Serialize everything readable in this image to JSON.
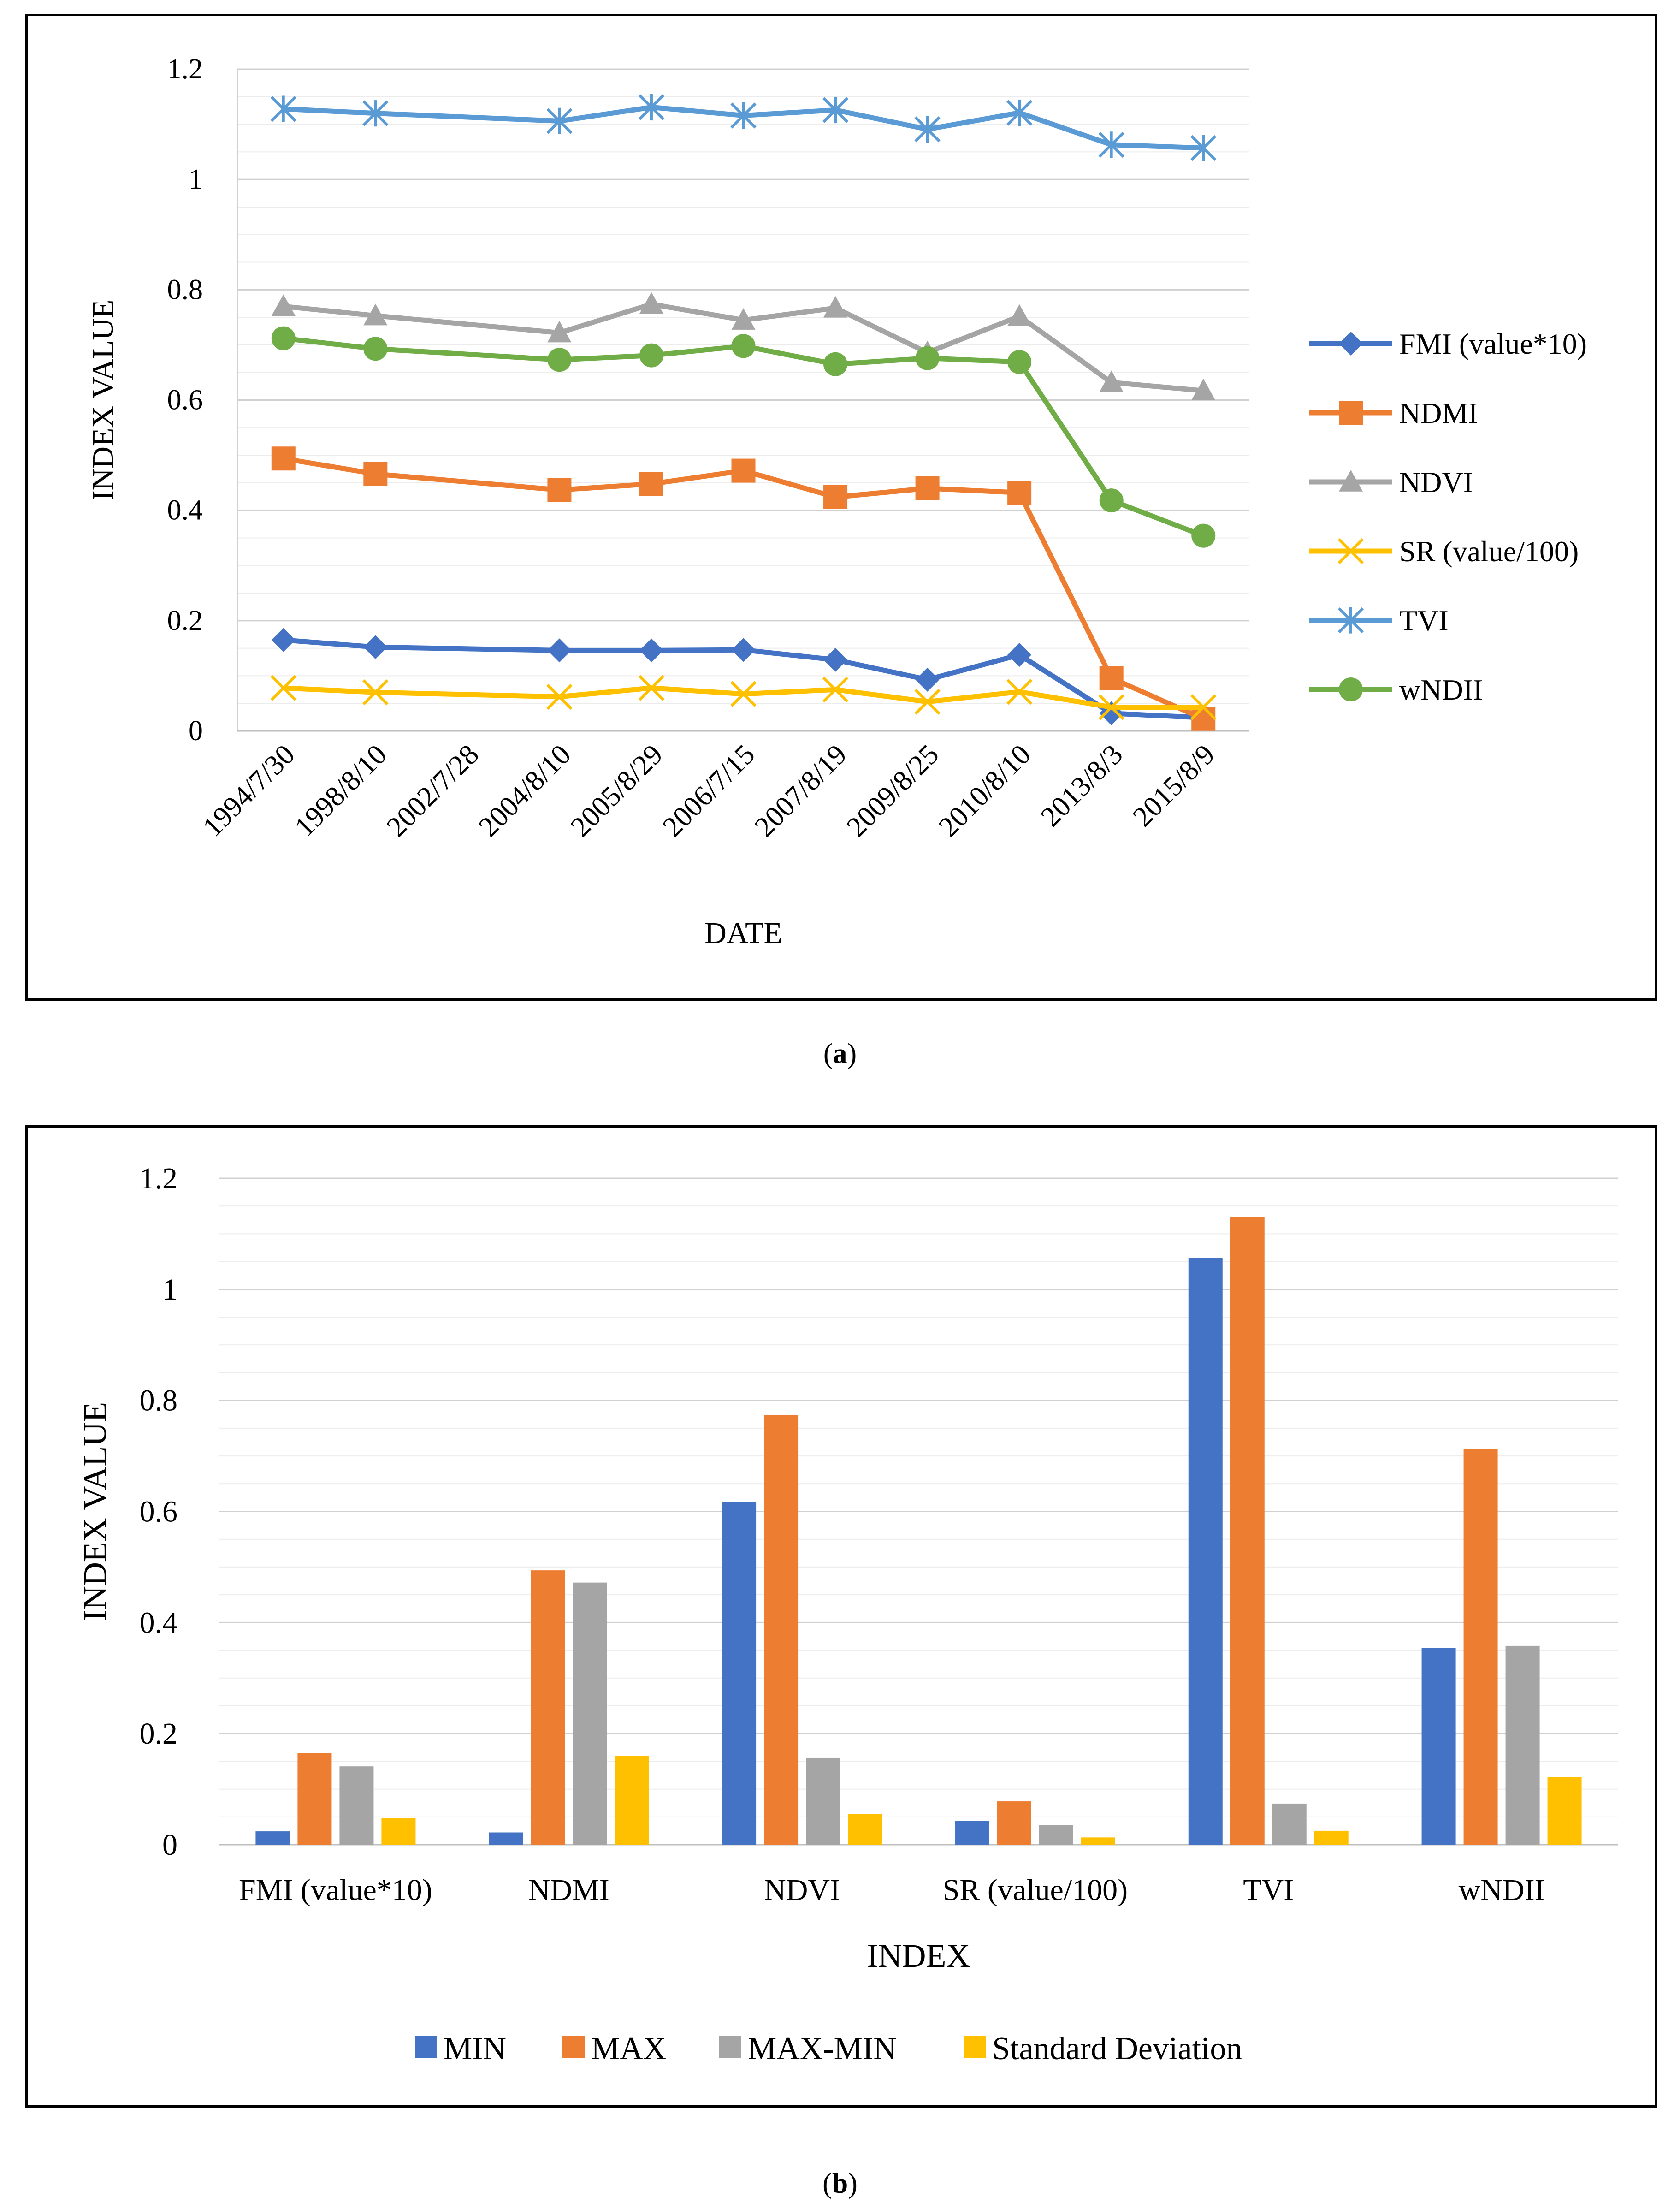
{
  "chart_data": [
    {
      "panel": "a",
      "type": "line",
      "xlabel": "DATE",
      "ylabel": "INDEX VALUE",
      "ylim": [
        0,
        1.2
      ],
      "yticks": [
        "0",
        "0.2",
        "0.4",
        "0.6",
        "0.8",
        "1",
        "1.2"
      ],
      "categories": [
        "1994/7/30",
        "1998/8/10",
        "2002/7/28",
        "2004/8/10",
        "2005/8/29",
        "2006/7/15",
        "2007/8/19",
        "2009/8/25",
        "2010/8/10",
        "2013/8/3",
        "2015/8/9"
      ],
      "series": [
        {
          "name": "FMI (value*10)",
          "color": "#4472C4",
          "marker": "diamond",
          "values": [
            0.165,
            0.152,
            null,
            0.146,
            0.146,
            0.147,
            0.129,
            0.093,
            0.138,
            0.032,
            0.024
          ]
        },
        {
          "name": "NDMI",
          "color": "#ED7D31",
          "marker": "square",
          "values": [
            0.494,
            0.466,
            null,
            0.437,
            0.448,
            0.472,
            0.424,
            0.44,
            0.432,
            0.096,
            0.022
          ]
        },
        {
          "name": "NDVI",
          "color": "#A5A5A5",
          "marker": "triangle",
          "values": [
            0.77,
            0.753,
            null,
            0.722,
            0.774,
            0.745,
            0.767,
            0.686,
            0.752,
            0.632,
            0.617
          ]
        },
        {
          "name": "SR (value/100)",
          "color": "#FFC000",
          "marker": "x",
          "values": [
            0.078,
            0.07,
            null,
            0.062,
            0.078,
            0.067,
            0.075,
            0.053,
            0.071,
            0.043,
            0.043
          ]
        },
        {
          "name": "TVI",
          "color": "#5B9BD5",
          "marker": "asterisk",
          "values": [
            1.128,
            1.12,
            null,
            1.106,
            1.131,
            1.116,
            1.126,
            1.091,
            1.121,
            1.063,
            1.057
          ]
        },
        {
          "name": "wNDII",
          "color": "#70AD47",
          "marker": "circle",
          "values": [
            0.712,
            0.693,
            null,
            0.673,
            0.681,
            0.698,
            0.665,
            0.676,
            0.669,
            0.418,
            0.354
          ]
        }
      ],
      "legend": "right"
    },
    {
      "panel": "b",
      "type": "bar",
      "xlabel": "INDEX",
      "ylabel": "INDEX VALUE",
      "ylim": [
        0,
        1.2
      ],
      "yticks": [
        "0",
        "0.2",
        "0.4",
        "0.6",
        "0.8",
        "1",
        "1.2"
      ],
      "categories": [
        "FMI (value*10)",
        "NDMI",
        "NDVI",
        "SR (value/100)",
        "TVI",
        "wNDII"
      ],
      "series": [
        {
          "name": "MIN",
          "color": "#4472C4",
          "values": [
            0.024,
            0.022,
            0.617,
            0.043,
            1.057,
            0.354
          ]
        },
        {
          "name": "MAX",
          "color": "#ED7D31",
          "values": [
            0.165,
            0.494,
            0.774,
            0.078,
            1.131,
            0.712
          ]
        },
        {
          "name": "MAX-MIN",
          "color": "#A5A5A5",
          "values": [
            0.141,
            0.472,
            0.157,
            0.035,
            0.074,
            0.358
          ]
        },
        {
          "name": "Standard Deviation",
          "color": "#FFC000",
          "values": [
            0.048,
            0.16,
            0.055,
            0.013,
            0.025,
            0.122
          ]
        }
      ],
      "legend": "bottom"
    }
  ],
  "captions": {
    "a": {
      "open": "(",
      "label": "a",
      "close": ")"
    },
    "b": {
      "open": "(",
      "label": "b",
      "close": ")"
    }
  }
}
